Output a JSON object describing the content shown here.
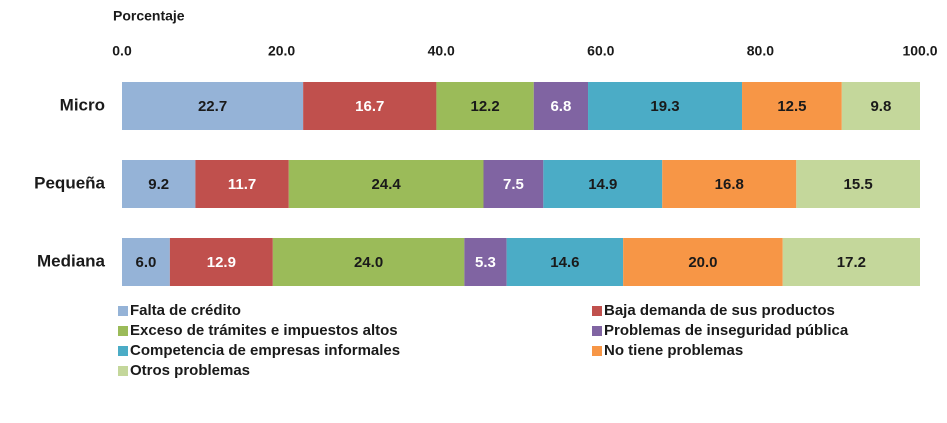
{
  "chart_data": {
    "type": "stacked_barh",
    "x_label": "Porcentaje",
    "categories": [
      "Micro",
      "Pequeña",
      "Mediana"
    ],
    "xlim": [
      0,
      100
    ],
    "xticks": [
      {
        "value": 0,
        "label": "0.0"
      },
      {
        "value": 20,
        "label": "20.0"
      },
      {
        "value": 40,
        "label": "40.0"
      },
      {
        "value": 60,
        "label": "60.0"
      },
      {
        "value": 80,
        "label": "80.0"
      },
      {
        "value": 100,
        "label": "100.0"
      }
    ],
    "legend": "bottom",
    "series": [
      {
        "name": "Falta de crédito",
        "color": "#95b3d7",
        "label_color": "#1a1a1a",
        "values": [
          22.7,
          9.2,
          6.0
        ],
        "value_labels": [
          "22.7",
          "9.2",
          "6.0"
        ]
      },
      {
        "name": "Baja demanda de sus productos",
        "color": "#c0504d",
        "label_color": "#ffffff",
        "values": [
          16.7,
          11.7,
          12.9
        ],
        "value_labels": [
          "16.7",
          "11.7",
          "12.9"
        ]
      },
      {
        "name": "Exceso de trámites e impuestos altos",
        "color": "#9bbb59",
        "label_color": "#1a1a1a",
        "values": [
          12.2,
          24.4,
          24.0
        ],
        "value_labels": [
          "12.2",
          "24.4",
          "24.0"
        ]
      },
      {
        "name": "Problemas de inseguridad pública",
        "color": "#8064a2",
        "label_color": "#ffffff",
        "values": [
          6.8,
          7.5,
          5.3
        ],
        "value_labels": [
          "6.8",
          "7.5",
          "5.3"
        ]
      },
      {
        "name": "Competencia de empresas informales",
        "color": "#4bacc6",
        "label_color": "#1a1a1a",
        "values": [
          19.3,
          14.9,
          14.6
        ],
        "value_labels": [
          "19.3",
          "14.9",
          "14.6"
        ]
      },
      {
        "name": "No tiene problemas",
        "color": "#f79646",
        "label_color": "#1a1a1a",
        "values": [
          12.5,
          16.8,
          20.0
        ],
        "value_labels": [
          "12.5",
          "16.8",
          "20.0"
        ]
      },
      {
        "name": "Otros problemas",
        "color": "#c4d79b",
        "label_color": "#1a1a1a",
        "values": [
          9.8,
          15.5,
          17.2
        ],
        "value_labels": [
          "9.8",
          "15.5",
          "17.2"
        ]
      }
    ]
  }
}
